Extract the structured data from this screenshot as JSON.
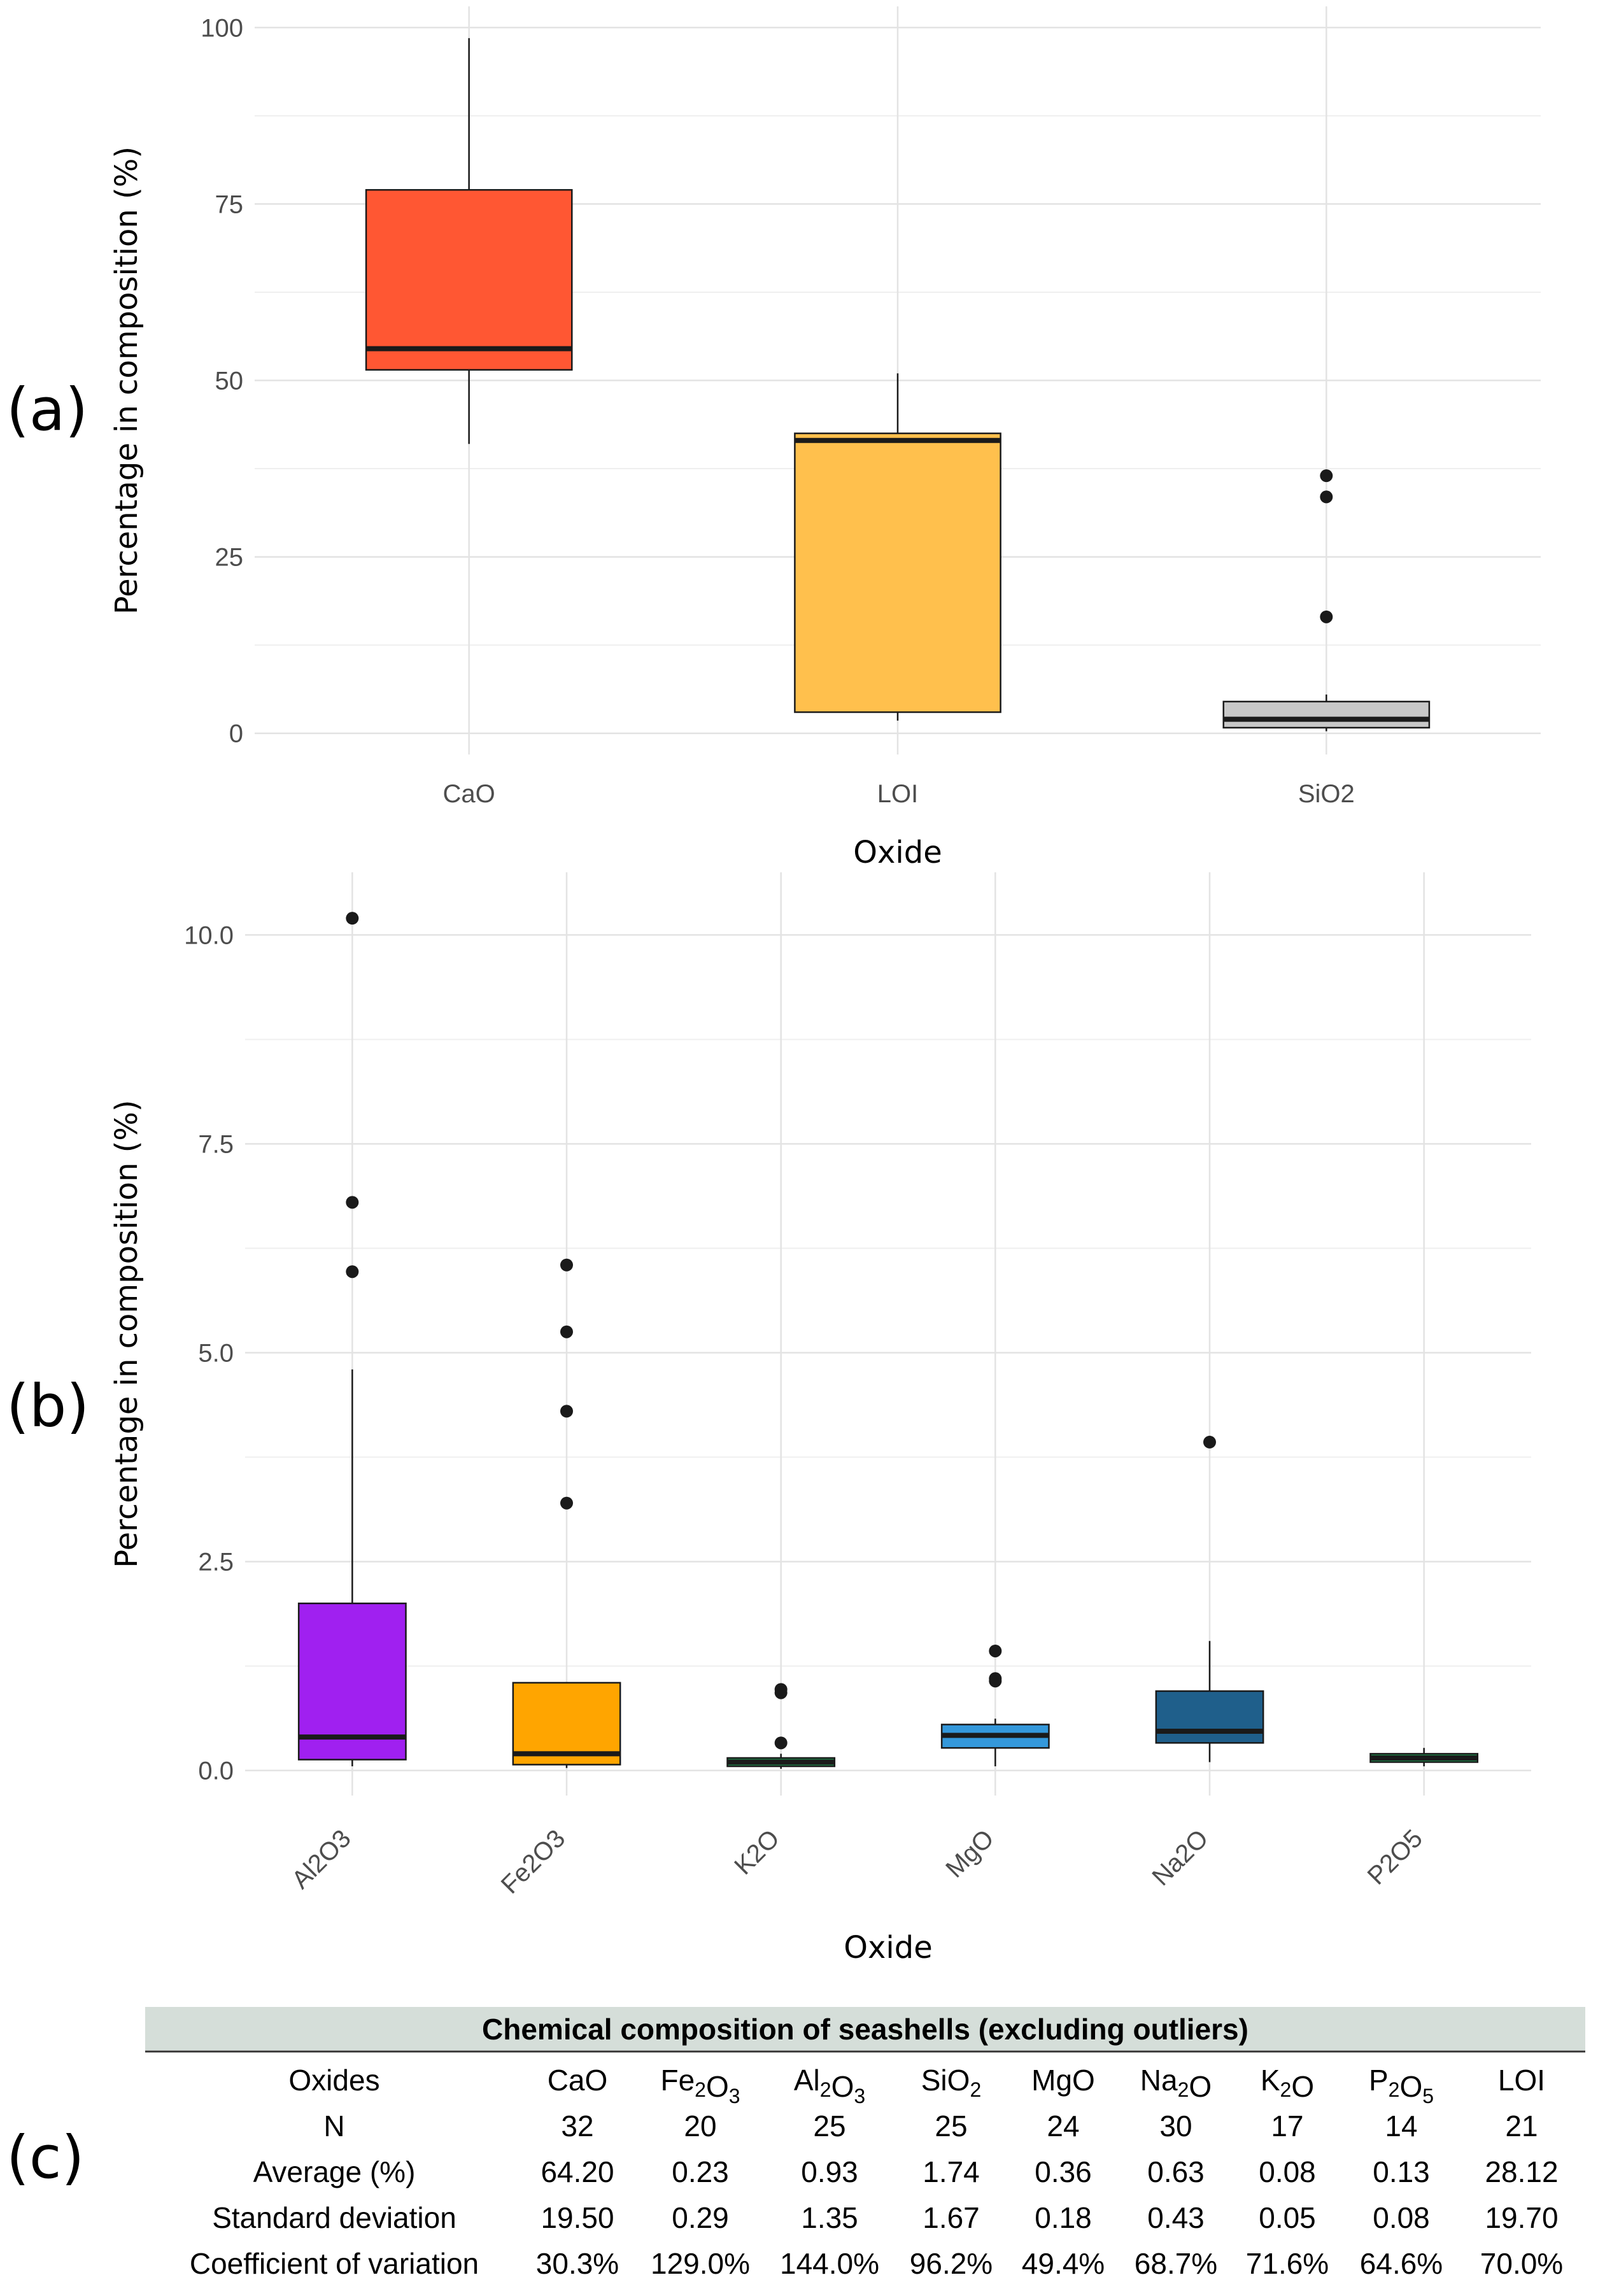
{
  "panel_labels": [
    "(a)",
    "(b)",
    "(c)"
  ],
  "chart_data": [
    {
      "type": "boxplot",
      "panel": "(a)",
      "xlabel": "Oxide",
      "ylabel": "Percentage in composition (%)",
      "ylim": [
        -3,
        103
      ],
      "yticks": [
        0,
        25,
        50,
        75,
        100
      ],
      "ytick_labels": [
        "0",
        "25",
        "50",
        "75",
        "100"
      ],
      "grid": true,
      "boxes": [
        {
          "label": "CaO",
          "color": "#FF5733",
          "whisker_low": 41,
          "q1": 51.5,
          "median": 54.5,
          "q3": 77,
          "whisker_high": 98.5,
          "outliers": []
        },
        {
          "label": "LOI",
          "color": "#FFC04D",
          "whisker_low": 1.8,
          "q1": 3,
          "median": 41.5,
          "q3": 42.5,
          "whisker_high": 51,
          "outliers": []
        },
        {
          "label": "SiO2",
          "color": "#C8C8C8",
          "whisker_low": 0.3,
          "q1": 0.8,
          "median": 2,
          "q3": 4.5,
          "whisker_high": 5.5,
          "outliers": [
            16.5,
            33.5,
            36.5
          ]
        }
      ]
    },
    {
      "type": "boxplot",
      "panel": "(b)",
      "xlabel": "Oxide",
      "ylabel": "Percentage in composition (%)",
      "ylim": [
        -0.3,
        10.75
      ],
      "yticks": [
        0,
        2.5,
        5,
        7.5,
        10
      ],
      "ytick_labels": [
        "0.0",
        "2.5",
        "5.0",
        "7.5",
        "10.0"
      ],
      "grid": true,
      "boxes": [
        {
          "label": "Al2O3",
          "color": "#A020F0",
          "whisker_low": 0.05,
          "q1": 0.13,
          "median": 0.4,
          "q3": 2.0,
          "whisker_high": 4.8,
          "outliers": [
            5.97,
            6.8,
            10.2
          ]
        },
        {
          "label": "Fe2O3",
          "color": "#FFA500",
          "whisker_low": 0.03,
          "q1": 0.07,
          "median": 0.2,
          "q3": 1.05,
          "whisker_high": 1.05,
          "outliers": [
            3.2,
            4.3,
            5.25,
            6.05
          ]
        },
        {
          "label": "K2O",
          "color": "#1E8449",
          "whisker_low": 0.02,
          "q1": 0.05,
          "median": 0.1,
          "q3": 0.15,
          "whisker_high": 0.2,
          "outliers": [
            0.33,
            0.93,
            0.97
          ]
        },
        {
          "label": "MgO",
          "color": "#3498DB",
          "whisker_low": 0.05,
          "q1": 0.27,
          "median": 0.42,
          "q3": 0.55,
          "whisker_high": 0.62,
          "outliers": [
            1.07,
            1.1,
            1.43
          ]
        },
        {
          "label": "Na2O",
          "color": "#1F5F8B",
          "whisker_low": 0.1,
          "q1": 0.33,
          "median": 0.47,
          "q3": 0.95,
          "whisker_high": 1.55,
          "outliers": [
            3.93
          ]
        },
        {
          "label": "P2O5",
          "color": "#1E8449",
          "whisker_low": 0.05,
          "q1": 0.1,
          "median": 0.15,
          "q3": 0.2,
          "whisker_high": 0.27,
          "outliers": []
        }
      ]
    },
    {
      "type": "table",
      "panel": "(c)",
      "title": "Chemical composition of seashells (excluding outliers)",
      "columns": [
        {
          "base": "CaO",
          "parts": [
            [
              "CaO",
              ""
            ]
          ]
        },
        {
          "base": "Fe2O3",
          "parts": [
            [
              "Fe",
              "2"
            ],
            [
              "O",
              "3"
            ]
          ]
        },
        {
          "base": "Al2O3",
          "parts": [
            [
              "Al",
              "2"
            ],
            [
              "O",
              "3"
            ]
          ]
        },
        {
          "base": "SiO2",
          "parts": [
            [
              "SiO",
              "2"
            ]
          ]
        },
        {
          "base": "MgO",
          "parts": [
            [
              "MgO",
              ""
            ]
          ]
        },
        {
          "base": "Na2O",
          "parts": [
            [
              "Na",
              "2"
            ],
            [
              "O",
              ""
            ]
          ]
        },
        {
          "base": "K2O",
          "parts": [
            [
              "K",
              "2"
            ],
            [
              "O",
              ""
            ]
          ]
        },
        {
          "base": "P2O5",
          "parts": [
            [
              "P",
              "2"
            ],
            [
              "O",
              "5"
            ]
          ]
        },
        {
          "base": "LOI",
          "parts": [
            [
              "LOI",
              ""
            ]
          ]
        }
      ],
      "header_label": "Oxides",
      "rows": [
        {
          "label": "N",
          "values": [
            "32",
            "20",
            "25",
            "25",
            "24",
            "30",
            "17",
            "14",
            "21"
          ]
        },
        {
          "label": "Average (%)",
          "values": [
            "64.20",
            "0.23",
            "0.93",
            "1.74",
            "0.36",
            "0.63",
            "0.08",
            "0.13",
            "28.12"
          ]
        },
        {
          "label": "Standard deviation",
          "values": [
            "19.50",
            "0.29",
            "1.35",
            "1.67",
            "0.18",
            "0.43",
            "0.05",
            "0.08",
            "19.70"
          ]
        },
        {
          "label": "Coefficient of variation",
          "values": [
            "30.3%",
            "129.0%",
            "144.0%",
            "96.2%",
            "49.4%",
            "68.7%",
            "71.6%",
            "64.6%",
            "70.0%"
          ]
        }
      ]
    }
  ]
}
